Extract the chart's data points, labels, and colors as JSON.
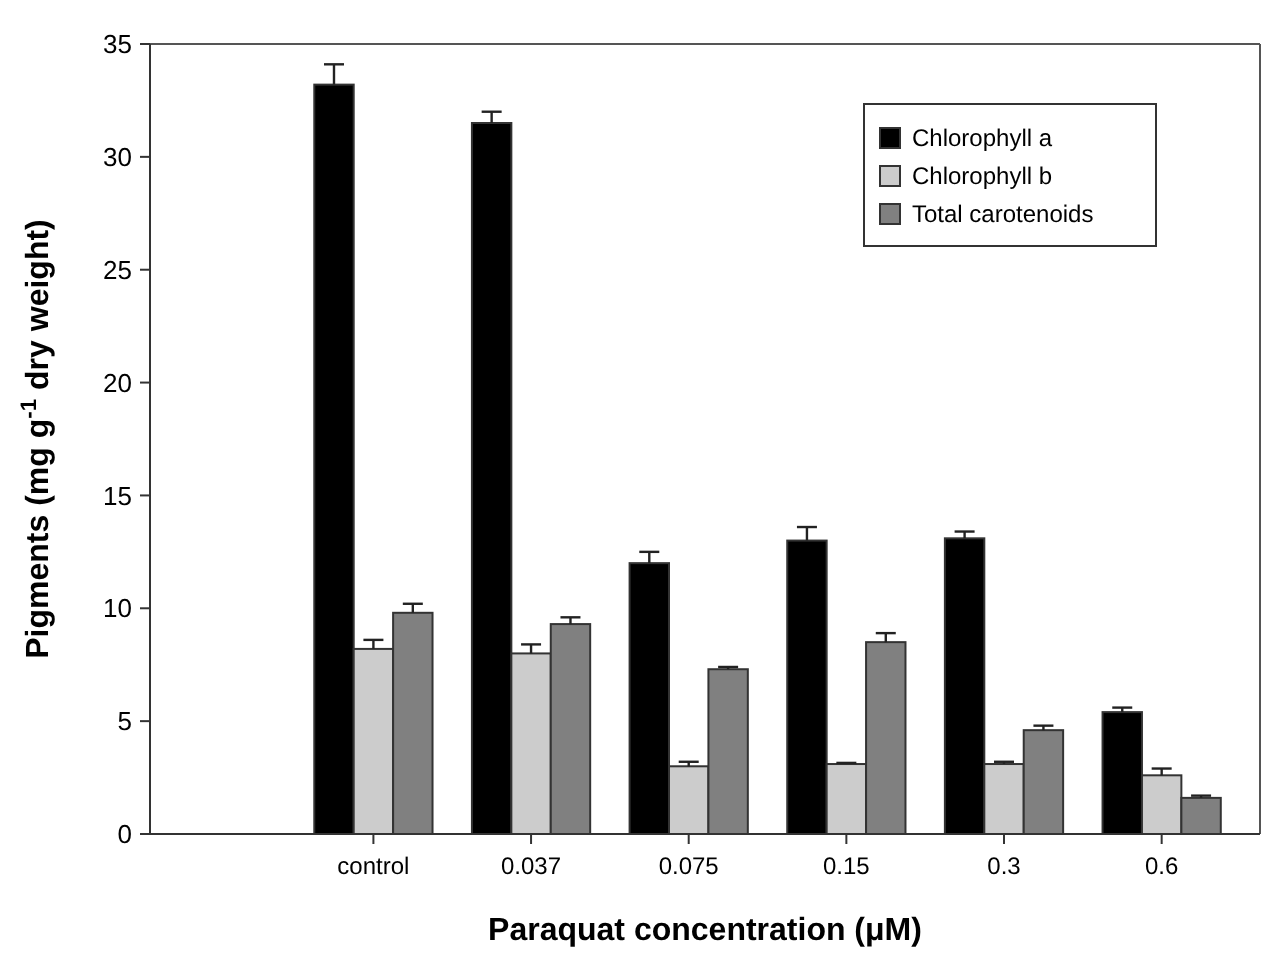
{
  "chart_data": {
    "type": "bar",
    "xlabel": "Paraquat concentration (μM)",
    "ylabel": "Pigments (mg g$^{-1}$ dry weight)",
    "categories": [
      "control",
      "0.037",
      "0.075",
      "0.15",
      "0.3",
      "0.6"
    ],
    "series": [
      {
        "name": "Chlorophyll a",
        "color": "#000000",
        "values": [
          33.2,
          31.5,
          12.0,
          13.0,
          13.1,
          5.4
        ],
        "errors": [
          0.9,
          0.5,
          0.5,
          0.6,
          0.3,
          0.2
        ]
      },
      {
        "name": "Chlorophyll b",
        "color": "#cccccc",
        "values": [
          8.2,
          8.0,
          3.0,
          3.1,
          3.1,
          2.6
        ],
        "errors": [
          0.4,
          0.4,
          0.2,
          0.05,
          0.1,
          0.3
        ]
      },
      {
        "name": "Total carotenoids",
        "color": "#808080",
        "values": [
          9.8,
          9.3,
          7.3,
          8.5,
          4.6,
          1.6
        ],
        "errors": [
          0.4,
          0.3,
          0.1,
          0.4,
          0.2,
          0.1
        ]
      }
    ],
    "ylim": [
      0,
      35
    ],
    "yticks": [
      0,
      5,
      10,
      15,
      20,
      25,
      30,
      35
    ],
    "legend": "top right",
    "grid": false
  }
}
